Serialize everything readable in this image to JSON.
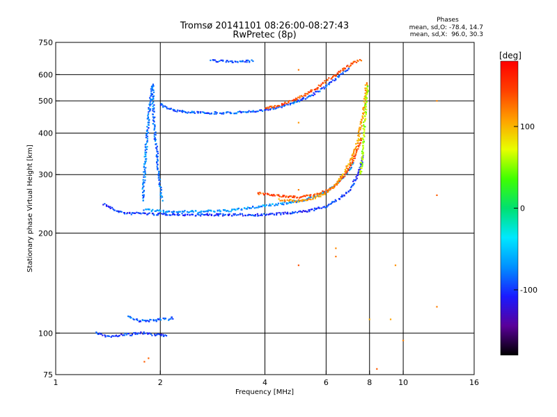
{
  "chart_data": {
    "type": "scatter",
    "title": "Tromsø 20141101 08:26:00-08:27:43",
    "subtitle": "RwPretec (8p)",
    "stats_heading": "Phases",
    "stats_line1": "mean, sd,O: -78.4, 14.7",
    "stats_line2": "mean, sd,X:  96.0, 30.3",
    "xlabel": "Frequency [MHz]",
    "ylabel": "Stationary phase Virtual Height [km]",
    "x_scale": "log",
    "y_scale": "log",
    "xlim": [
      1,
      16
    ],
    "ylim": [
      75,
      750
    ],
    "x_ticks": [
      1,
      2,
      4,
      6,
      8,
      10,
      16
    ],
    "y_ticks": [
      75,
      100,
      200,
      300,
      400,
      500,
      600,
      750
    ],
    "x_grid": [
      2,
      4,
      6,
      8,
      10
    ],
    "y_grid": [
      100,
      200,
      300,
      400,
      500,
      600
    ],
    "colorbar": {
      "label": "[deg]",
      "range": [
        -180,
        180
      ],
      "ticks": [
        100,
        0,
        -100
      ],
      "colormap": [
        "#000000",
        "#5a009a",
        "#1a1aff",
        "#0090ff",
        "#00e8ff",
        "#00e070",
        "#40ff00",
        "#e8ff00",
        "#ffa000",
        "#ff4000",
        "#ff0000"
      ]
    },
    "series": [
      {
        "x": [
          1.38,
          1.42,
          1.46,
          1.5,
          1.55,
          1.6,
          1.66,
          1.72,
          1.8,
          1.9,
          2.0,
          2.2,
          2.4,
          2.7,
          3.0,
          3.3,
          3.6,
          3.9,
          4.2,
          4.5,
          4.8,
          5.1,
          5.4,
          5.7,
          6.0,
          6.25,
          6.5,
          6.75,
          7.0,
          7.2,
          7.4,
          7.55,
          7.7
        ],
        "y": [
          245,
          240,
          236,
          233,
          231,
          229,
          229,
          230,
          229,
          228,
          228,
          228,
          227,
          227,
          227,
          227,
          227,
          227,
          228,
          229,
          230,
          232,
          234,
          237,
          241,
          246,
          252,
          260,
          270,
          283,
          300,
          320,
          345
        ],
        "phase": -100
      },
      {
        "x": [
          1.8,
          1.85,
          1.9,
          1.95,
          2.0,
          2.1,
          2.2,
          2.4,
          2.6,
          2.8,
          3.0,
          3.2,
          3.4,
          3.6,
          3.8,
          4.0,
          4.3,
          4.6,
          4.9,
          5.2,
          5.5,
          5.8,
          6.1,
          6.4,
          6.7,
          7.0,
          7.2
        ],
        "y": [
          236,
          235,
          234,
          233,
          233,
          232,
          232,
          232,
          232,
          233,
          233,
          234,
          236,
          238,
          240,
          242,
          244,
          246,
          249,
          252,
          256,
          262,
          270,
          280,
          293,
          310,
          330
        ],
        "phase": -70
      },
      {
        "x": [
          3.8,
          4.0,
          4.2,
          4.4,
          4.6,
          4.8,
          5.0,
          5.2,
          5.4,
          5.6,
          5.8,
          6.0,
          6.2,
          6.4,
          6.6,
          6.8,
          7.0,
          7.2,
          7.4,
          7.6
        ],
        "y": [
          264,
          262,
          260,
          259,
          258,
          257,
          257,
          258,
          259,
          261,
          264,
          268,
          273,
          280,
          289,
          300,
          315,
          335,
          360,
          390
        ],
        "phase": 140
      },
      {
        "x": [
          4.4,
          4.6,
          4.8,
          5.0,
          5.2,
          5.4,
          5.6,
          5.8,
          6.0,
          6.2,
          6.4,
          6.6,
          6.8,
          7.0,
          7.2,
          7.4,
          7.55,
          7.7,
          7.8,
          7.85
        ],
        "y": [
          252,
          251,
          250,
          250,
          251,
          253,
          256,
          260,
          265,
          272,
          281,
          292,
          306,
          325,
          348,
          380,
          420,
          470,
          520,
          570
        ],
        "phase": 110
      },
      {
        "x": [
          2.0,
          2.1,
          2.2,
          2.4,
          2.6,
          2.8,
          3.0,
          3.2,
          3.4,
          3.6,
          3.8,
          4.0,
          4.3,
          4.6,
          4.9,
          5.2,
          5.5,
          5.8,
          6.1,
          6.4,
          6.7,
          7.0
        ],
        "y": [
          490,
          475,
          468,
          463,
          461,
          460,
          460,
          461,
          462,
          464,
          467,
          470,
          476,
          484,
          495,
          508,
          523,
          540,
          560,
          582,
          605,
          630
        ],
        "phase": -90
      },
      {
        "x": [
          4.0,
          4.3,
          4.6,
          4.9,
          5.2,
          5.5,
          5.8,
          6.1,
          6.4,
          6.7,
          7.0,
          7.3,
          7.6
        ],
        "y": [
          475,
          482,
          492,
          505,
          520,
          538,
          558,
          580,
          600,
          620,
          640,
          655,
          665
        ],
        "phase": 140
      },
      {
        "x": [
          2.8,
          2.9,
          3.0,
          3.1,
          3.2,
          3.3,
          3.4,
          3.5,
          3.6,
          3.7
        ],
        "y": [
          660,
          659,
          658,
          657,
          657,
          657,
          657,
          658,
          658,
          659
        ],
        "phase": -90
      },
      {
        "x": [
          1.62,
          1.66,
          1.7,
          1.75,
          1.8,
          1.85,
          1.9,
          1.95,
          2.0,
          2.05,
          2.1,
          2.15,
          2.2
        ],
        "y": [
          112,
          111,
          110,
          109,
          109,
          109,
          109,
          109,
          110,
          110,
          110,
          111,
          111
        ],
        "phase": -90
      },
      {
        "x": [
          1.3,
          1.35,
          1.4,
          1.45,
          1.5,
          1.55,
          1.6,
          1.65,
          1.7,
          1.75,
          1.8,
          1.9,
          2.0,
          2.1
        ],
        "y": [
          100,
          99,
          98,
          98,
          98,
          99,
          99,
          99,
          100,
          100,
          100,
          99,
          99,
          98
        ],
        "phase": -100
      },
      {
        "x": [
          1.78,
          1.8,
          1.82,
          1.84,
          1.86,
          1.88,
          1.9,
          1.92,
          1.94,
          1.96,
          1.98,
          2.0,
          2.02
        ],
        "y": [
          250,
          300,
          360,
          420,
          470,
          520,
          560,
          420,
          380,
          340,
          300,
          270,
          250
        ],
        "phase": -80
      },
      {
        "x": [
          7.55,
          7.6,
          7.65,
          7.7,
          7.75,
          7.8,
          7.85,
          7.9
        ],
        "y": [
          300,
          330,
          360,
          400,
          440,
          480,
          520,
          560
        ],
        "phase": 60
      },
      {
        "x": [
          5.0,
          5.0,
          5.0,
          5.0,
          6.4,
          6.4,
          8.0,
          9.5,
          10.0,
          12.5,
          12.5,
          12.5,
          1.8,
          1.85,
          8.4,
          9.2
        ],
        "y": [
          620,
          430,
          270,
          160,
          170,
          180,
          110,
          160,
          95,
          500,
          260,
          120,
          82,
          84,
          78,
          110
        ],
        "phase": 120
      }
    ]
  }
}
